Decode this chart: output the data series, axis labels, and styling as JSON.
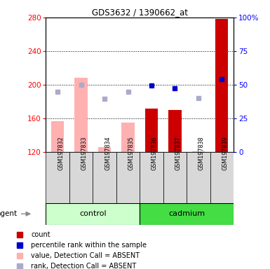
{
  "title": "GDS3632 / 1390662_at",
  "samples": [
    "GSM197832",
    "GSM197833",
    "GSM197834",
    "GSM197835",
    "GSM197836",
    "GSM197837",
    "GSM197838",
    "GSM197839"
  ],
  "bar_values_absent": [
    157,
    208,
    126,
    155,
    null,
    null,
    121,
    null
  ],
  "bar_values_present": [
    null,
    null,
    null,
    null,
    172,
    170,
    null,
    278
  ],
  "rank_absent": [
    192,
    200,
    183,
    192,
    null,
    null,
    184,
    null
  ],
  "rank_present": [
    null,
    null,
    null,
    null,
    199,
    196,
    null,
    207
  ],
  "ylim_left": [
    120,
    280
  ],
  "yticks_left": [
    120,
    160,
    200,
    240,
    280
  ],
  "ytick_labels_right": [
    "0",
    "25",
    "50",
    "75",
    "100%"
  ],
  "bar_color_absent": "#ffb0b0",
  "bar_color_present": "#cc0000",
  "rank_color_absent": "#aaaacc",
  "rank_color_present": "#0000cc",
  "bar_width": 0.55,
  "legend_items": [
    {
      "color": "#cc0000",
      "label": "count"
    },
    {
      "color": "#0000cc",
      "label": "percentile rank within the sample"
    },
    {
      "color": "#ffb0b0",
      "label": "value, Detection Call = ABSENT"
    },
    {
      "color": "#aaaacc",
      "label": "rank, Detection Call = ABSENT"
    }
  ]
}
